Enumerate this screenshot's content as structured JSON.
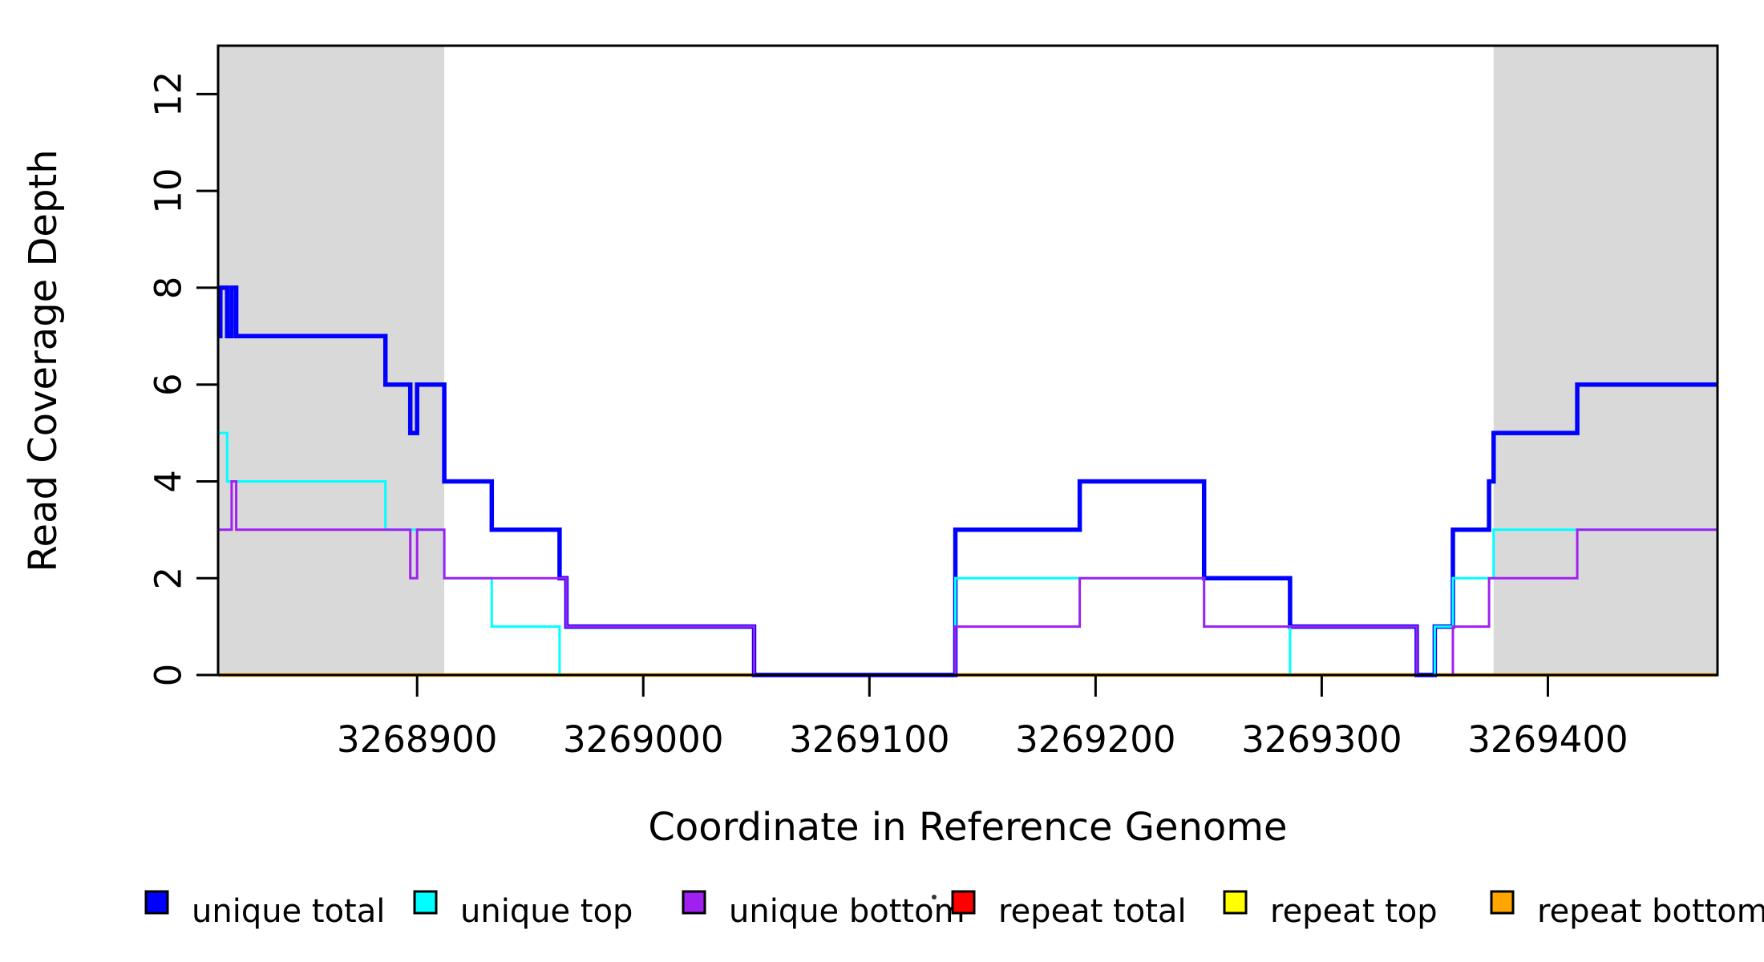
{
  "figure": {
    "background": "#ffffff",
    "xlabel": "Coordinate in Reference Genome",
    "ylabel": "Read Coverage Depth"
  },
  "chart_data": {
    "type": "line",
    "subtype": "step-coverage-profile",
    "title": "",
    "xlabel": "Coordinate in Reference Genome",
    "ylabel": "Read Coverage Depth",
    "xlim": [
      3268812,
      3269475
    ],
    "ylim": [
      0,
      13
    ],
    "grid": false,
    "x_ticks": [
      3268900,
      3269000,
      3269100,
      3269200,
      3269300,
      3269400
    ],
    "x_tick_labels": [
      "3268900",
      "3269000",
      "3269100",
      "3269200",
      "3269300",
      "3269400"
    ],
    "y_ticks": [
      0,
      2,
      4,
      6,
      8,
      10,
      12
    ],
    "y_tick_labels": [
      "0",
      "2",
      "4",
      "6",
      "8",
      "10",
      "12"
    ],
    "shade_color": "#D9D9D9",
    "shaded_regions": [
      {
        "x0": 3268812,
        "x1": 3268912
      },
      {
        "x0": 3269376,
        "x1": 3269475
      }
    ],
    "draw_order": [
      3,
      4,
      5,
      0,
      1,
      2
    ],
    "series": [
      {
        "name": "unique total",
        "color": "#0000FF",
        "line_width": 5.5,
        "steps": [
          [
            3268812,
            7
          ],
          [
            3268813,
            8
          ],
          [
            3268816,
            7
          ],
          [
            3268818,
            8
          ],
          [
            3268820,
            7
          ],
          [
            3268886,
            6
          ],
          [
            3268897,
            5
          ],
          [
            3268900,
            6
          ],
          [
            3268912,
            4
          ],
          [
            3268933,
            3
          ],
          [
            3268963,
            2
          ],
          [
            3268966,
            1
          ],
          [
            3269049,
            0
          ],
          [
            3269138,
            3
          ],
          [
            3269193,
            4
          ],
          [
            3269248,
            2
          ],
          [
            3269286,
            1
          ],
          [
            3269342,
            0
          ],
          [
            3269350,
            1
          ],
          [
            3269358,
            3
          ],
          [
            3269374,
            4
          ],
          [
            3269376,
            5
          ],
          [
            3269413,
            6
          ]
        ]
      },
      {
        "name": "unique top",
        "color": "#00FFFF",
        "line_width": 3,
        "steps": [
          [
            3268812,
            5
          ],
          [
            3268816,
            4
          ],
          [
            3268886,
            3
          ],
          [
            3268912,
            2
          ],
          [
            3268933,
            1
          ],
          [
            3268963,
            0
          ],
          [
            3269138,
            2
          ],
          [
            3269248,
            1
          ],
          [
            3269286,
            0
          ],
          [
            3269350,
            1
          ],
          [
            3269358,
            2
          ],
          [
            3269376,
            3
          ]
        ]
      },
      {
        "name": "unique bottom",
        "color": "#A020F0",
        "line_width": 3,
        "steps": [
          [
            3268812,
            3
          ],
          [
            3268818,
            4
          ],
          [
            3268820,
            3
          ],
          [
            3268897,
            2
          ],
          [
            3268900,
            3
          ],
          [
            3268912,
            2
          ],
          [
            3268966,
            1
          ],
          [
            3269049,
            0
          ],
          [
            3269138,
            1
          ],
          [
            3269193,
            2
          ],
          [
            3269248,
            1
          ],
          [
            3269342,
            0
          ],
          [
            3269358,
            1
          ],
          [
            3269374,
            2
          ],
          [
            3269413,
            3
          ]
        ]
      },
      {
        "name": "repeat total",
        "color": "#FF0000",
        "line_width": 3,
        "steps": [
          [
            3268812,
            0
          ]
        ]
      },
      {
        "name": "repeat top",
        "color": "#FFFF00",
        "line_width": 3,
        "steps": [
          [
            3268812,
            0
          ]
        ]
      },
      {
        "name": "repeat bottom",
        "color": "#FFA500",
        "line_width": 4.5,
        "steps": [
          [
            3268812,
            0
          ]
        ]
      }
    ],
    "legend": {
      "position": "bottom",
      "separator_dot": true,
      "items": [
        {
          "label": "unique total",
          "color": "#0000FF"
        },
        {
          "label": "unique top",
          "color": "#00FFFF"
        },
        {
          "label": "unique bottom",
          "color": "#A020F0"
        },
        {
          "label": "repeat total",
          "color": "#FF0000"
        },
        {
          "label": "repeat top",
          "color": "#FFFF00"
        },
        {
          "label": "repeat bottom",
          "color": "#FFA500"
        }
      ]
    }
  }
}
